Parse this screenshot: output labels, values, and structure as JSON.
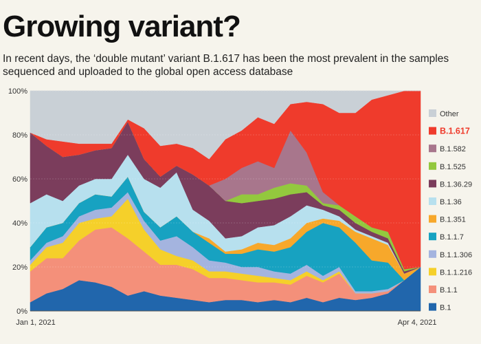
{
  "header": {
    "title": "Growing variant?",
    "subtitle": "In recent days, the ‘double mutant’ variant B.1.617 has been the most prevalent in the samples sequenced and uploaded to the global open access database"
  },
  "chart_data": {
    "type": "area",
    "stacked": true,
    "title": "Growing variant?",
    "xlabel": "",
    "ylabel": "",
    "ylim": [
      0,
      100
    ],
    "x_start_label": "Jan 1, 2021",
    "x_end_label": "Apr 4, 2021",
    "y_ticks": [
      "0%",
      "20%",
      "40%",
      "60%",
      "80%",
      "100%"
    ],
    "x": [
      0,
      4,
      8,
      12,
      16,
      20,
      24,
      28,
      32,
      36,
      40,
      44,
      48,
      52,
      56,
      60,
      64,
      68,
      72,
      76,
      80,
      84,
      88,
      92,
      96
    ],
    "highlight": "B.1.617",
    "series": [
      {
        "name": "B.1",
        "color": "#2166ac",
        "values": [
          4,
          8,
          10,
          14,
          13,
          11,
          7,
          9,
          7,
          6,
          5,
          4,
          5,
          5,
          4,
          5,
          4,
          6,
          4,
          6,
          5,
          6,
          8,
          14,
          20
        ]
      },
      {
        "name": "B.1.1",
        "color": "#f4907a",
        "values": [
          14,
          16,
          14,
          18,
          24,
          27,
          26,
          18,
          14,
          15,
          14,
          11,
          10,
          9,
          9,
          8,
          8,
          10,
          9,
          11,
          3,
          2,
          1,
          0,
          0
        ]
      },
      {
        "name": "B.1.1.216",
        "color": "#f5d02a",
        "values": [
          3,
          5,
          7,
          8,
          5,
          5,
          18,
          10,
          7,
          4,
          4,
          3,
          3,
          3,
          3,
          2,
          2,
          2,
          1,
          1,
          0,
          0,
          0,
          0,
          0
        ]
      },
      {
        "name": "B.1.1.306",
        "color": "#a4b4df",
        "values": [
          2,
          2,
          3,
          3,
          4,
          4,
          3,
          4,
          4,
          9,
          6,
          5,
          4,
          3,
          4,
          3,
          3,
          3,
          2,
          2,
          1,
          1,
          1,
          0,
          0
        ]
      },
      {
        "name": "B.1.1.7",
        "color": "#17a2c1",
        "values": [
          6,
          7,
          6,
          6,
          7,
          5,
          7,
          4,
          6,
          9,
          7,
          8,
          4,
          6,
          8,
          9,
          12,
          15,
          24,
          18,
          22,
          14,
          12,
          0,
          0
        ]
      },
      {
        "name": "B.1.351",
        "color": "#f7a82b",
        "values": [
          0,
          0,
          0,
          0,
          0,
          0,
          0,
          0,
          0,
          0,
          0,
          2,
          1,
          2,
          3,
          3,
          4,
          4,
          2,
          3,
          5,
          10,
          8,
          3,
          0
        ]
      },
      {
        "name": "B.1.36",
        "color": "#b7e0ee",
        "values": [
          20,
          15,
          10,
          8,
          7,
          8,
          10,
          15,
          18,
          20,
          10,
          8,
          6,
          6,
          7,
          9,
          10,
          8,
          4,
          2,
          1,
          1,
          1,
          0,
          0
        ]
      },
      {
        "name": "B.1.36.29",
        "color": "#7b3d5c",
        "values": [
          32,
          22,
          20,
          14,
          13,
          14,
          15,
          9,
          5,
          3,
          16,
          16,
          17,
          15,
          12,
          12,
          10,
          6,
          2,
          3,
          3,
          2,
          2,
          1,
          0
        ]
      },
      {
        "name": "B.1.525",
        "color": "#93c83e",
        "values": [
          0,
          0,
          0,
          0,
          0,
          0,
          0,
          0,
          0,
          0,
          0,
          0,
          0,
          4,
          3,
          5,
          5,
          3,
          1,
          2,
          3,
          2,
          3,
          1,
          0
        ]
      },
      {
        "name": "B.1.582",
        "color": "#a8768c",
        "values": [
          0,
          0,
          0,
          0,
          0,
          0,
          0,
          0,
          0,
          0,
          0,
          0,
          10,
          12,
          15,
          9,
          24,
          15,
          5,
          0,
          0,
          0,
          0,
          0,
          0
        ]
      },
      {
        "name": "B.1.617",
        "color": "#ef3b2c",
        "values": [
          0,
          3,
          7,
          5,
          3,
          2,
          1,
          14,
          14,
          10,
          12,
          12,
          18,
          17,
          20,
          20,
          12,
          23,
          40,
          42,
          47,
          58,
          62,
          81,
          80
        ]
      },
      {
        "name": "Other",
        "color": "#c9d0d6",
        "values": [
          19,
          22,
          23,
          24,
          24,
          24,
          13,
          17,
          25,
          24,
          26,
          31,
          22,
          18,
          12,
          15,
          6,
          5,
          6,
          10,
          10,
          4,
          2,
          0,
          0
        ]
      }
    ]
  }
}
